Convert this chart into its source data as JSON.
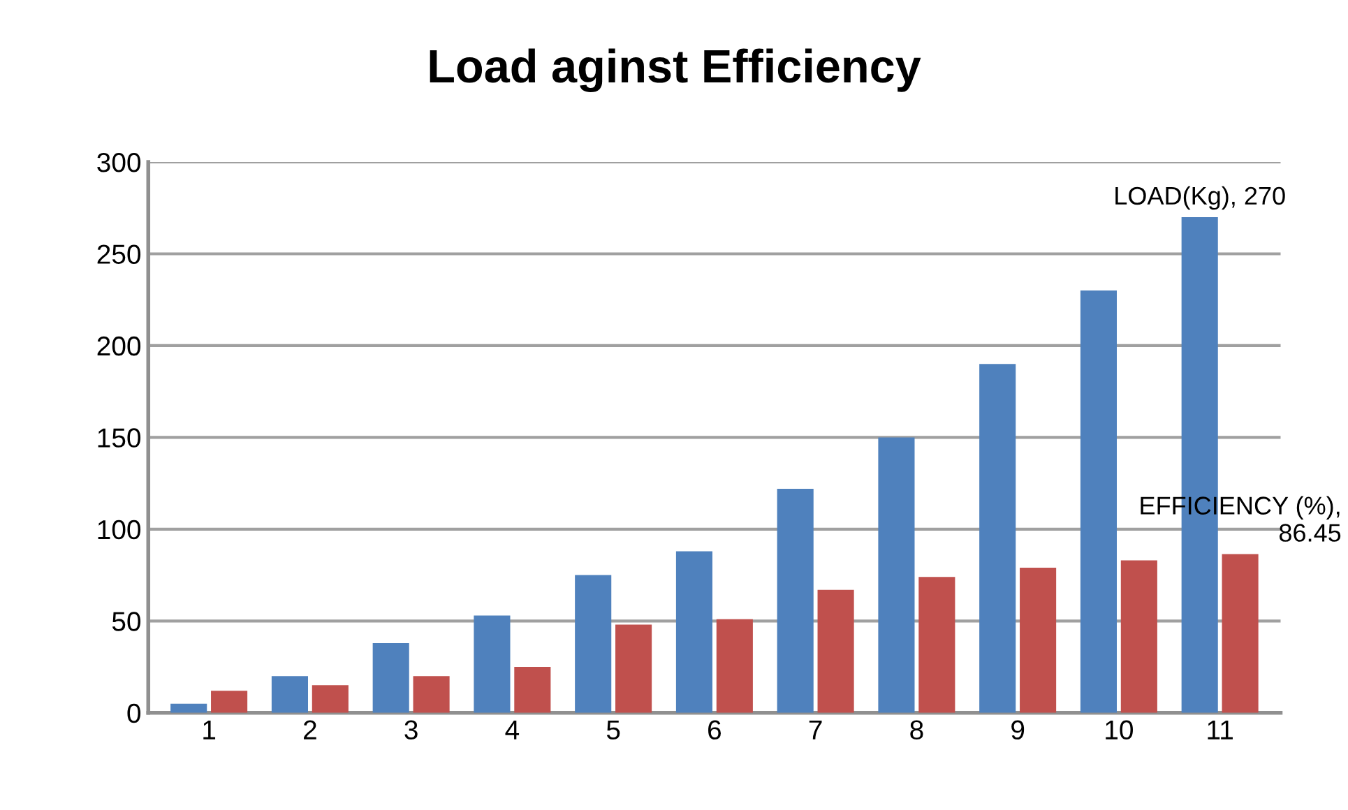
{
  "chart_data": {
    "type": "bar",
    "title": "Load aginst Efficiency",
    "categories": [
      "1",
      "2",
      "3",
      "4",
      "5",
      "6",
      "7",
      "8",
      "9",
      "10",
      "11"
    ],
    "series": [
      {
        "color": "#4f81bd",
        "values": [
          5,
          20,
          38,
          53,
          75,
          88,
          122,
          150,
          190,
          230,
          270
        ],
        "value_labels": [
          null,
          null,
          null,
          null,
          null,
          null,
          null,
          null,
          null,
          null,
          "LOAD(Kg), 270"
        ]
      },
      {
        "color": "#c0504d",
        "values": [
          12,
          15,
          20,
          25,
          48,
          51,
          67,
          74,
          79,
          83,
          86.45
        ],
        "value_labels": [
          null,
          null,
          null,
          null,
          null,
          null,
          null,
          null,
          null,
          null,
          "EFFICIENCY (%),\n86.45"
        ]
      }
    ],
    "ylim": [
      0,
      300
    ],
    "yticks": [
      0,
      50,
      100,
      150,
      200,
      250,
      300
    ],
    "grid": "y",
    "legend": false
  }
}
